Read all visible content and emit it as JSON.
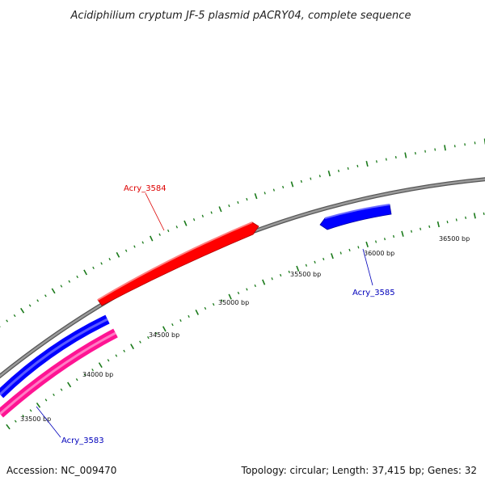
{
  "title": "Acidiphilium cryptum JF-5 plasmid pACRY04, complete sequence",
  "footer": {
    "accession": "Accession: NC_009470",
    "summary": "Topology: circular; Length: 37,415 bp; Genes: 32"
  },
  "ticks": [
    {
      "label": "33500 bp"
    },
    {
      "label": "34000 bp"
    },
    {
      "label": "34500 bp"
    },
    {
      "label": "35000 bp"
    },
    {
      "label": "35500 bp"
    },
    {
      "label": "36000 bp"
    },
    {
      "label": "36500 bp"
    }
  ],
  "genes": [
    {
      "name": "Acry_3583",
      "color": "#0000bb"
    },
    {
      "name": "Acry_3584",
      "color": "#dd0000"
    },
    {
      "name": "Acry_3585",
      "color": "#0000bb"
    }
  ],
  "colors": {
    "backbone": "#808080",
    "tick_marks": "#1a7a1a",
    "forward_gene": "#ff0000",
    "reverse_gene": "#0000ff",
    "other_gene": "#ff1493"
  }
}
